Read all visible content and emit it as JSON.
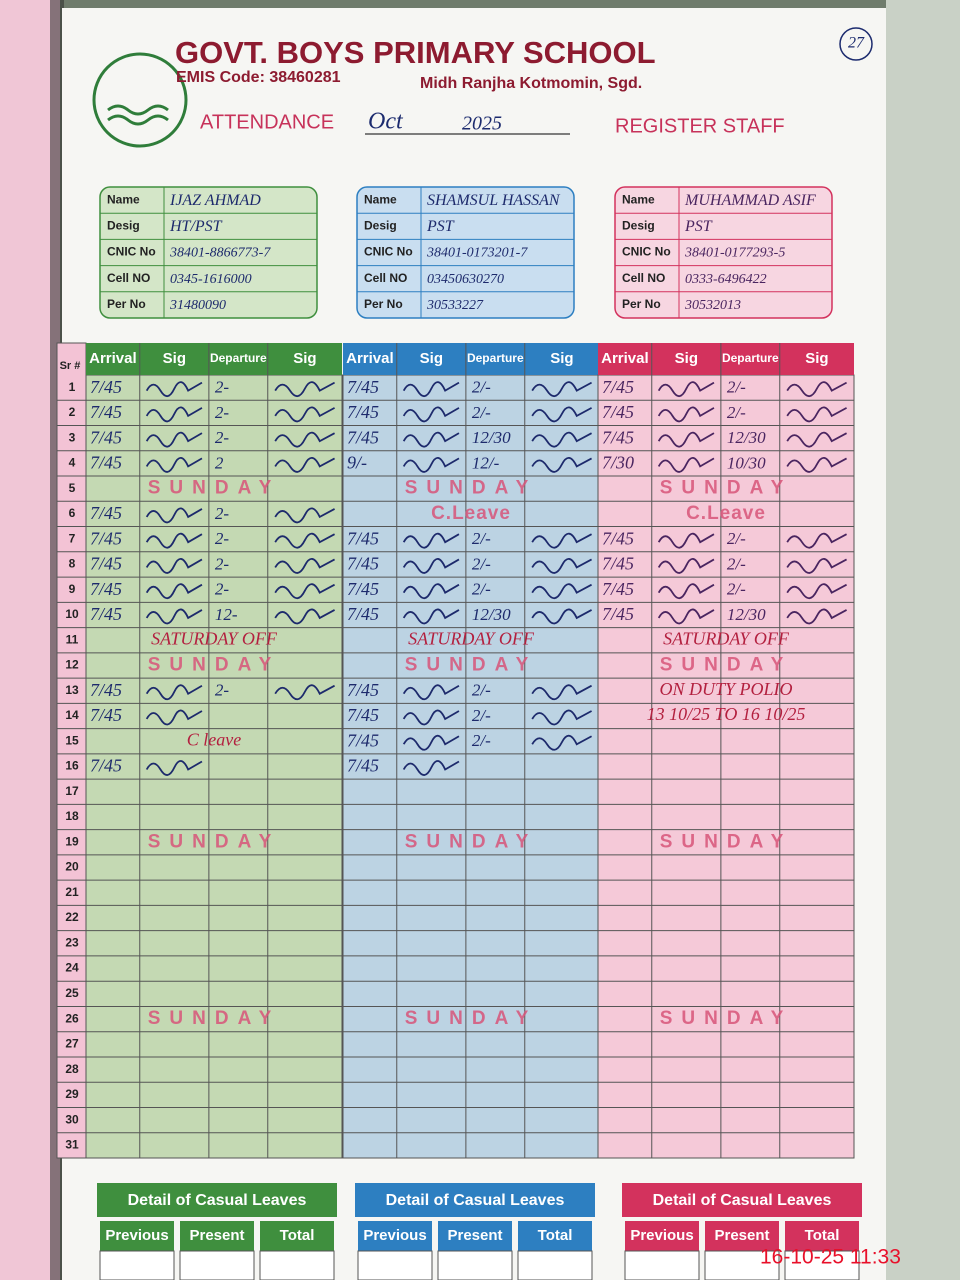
{
  "header": {
    "school": "GOVT. BOYS PRIMARY SCHOOL",
    "emis": "EMIS Code: 38460281",
    "location": "Midh Ranjha Kotmomin, Sgd.",
    "attendance": "ATTENDANCE",
    "month": "Oct",
    "year": "2025",
    "register": "REGISTER STAFF",
    "page_no": "27"
  },
  "sr_label": "Sr #",
  "rows": [
    1,
    2,
    3,
    4,
    5,
    6,
    7,
    8,
    9,
    10,
    11,
    12,
    13,
    14,
    15,
    16,
    17,
    18,
    19,
    20,
    21,
    22,
    23,
    24,
    25,
    26,
    27,
    28,
    29,
    30,
    31
  ],
  "staff": [
    {
      "fields": [
        {
          "label": "Name",
          "value": "IJAZ AHMAD"
        },
        {
          "label": "Desig",
          "value": "HT/PST"
        },
        {
          "label": "CNIC No",
          "value": "38401-8866773-7"
        },
        {
          "label": "Cell NO",
          "value": "0345-1616000"
        },
        {
          "label": "Per No",
          "value": "31480090"
        }
      ],
      "columns": [
        "Arrival",
        "Sig",
        "Departure",
        "Sig"
      ],
      "entries": [
        {
          "arrival": "7/45",
          "departure": "2-"
        },
        {
          "arrival": "7/45",
          "departure": "2-"
        },
        {
          "arrival": "7/45",
          "departure": "2-"
        },
        {
          "arrival": "7/45",
          "departure": "2"
        },
        {
          "stamp": "SUNDAY"
        },
        {
          "arrival": "7/45",
          "departure": "2-"
        },
        {
          "arrival": "7/45",
          "departure": "2-"
        },
        {
          "arrival": "7/45",
          "departure": "2-"
        },
        {
          "arrival": "7/45",
          "departure": "2-"
        },
        {
          "arrival": "7/45",
          "departure": "12-"
        },
        {
          "note": "SATURDAY OFF"
        },
        {
          "stamp": "SUNDAY"
        },
        {
          "arrival": "7/45",
          "departure": "2-"
        },
        {
          "arrival": "7/45"
        },
        {
          "note": "C leave"
        },
        {
          "arrival": "7/45"
        },
        null,
        null,
        {
          "stamp": "SUNDAY"
        },
        null,
        null,
        null,
        null,
        null,
        null,
        {
          "stamp": "SUNDAY"
        },
        null,
        null,
        null,
        null,
        null
      ],
      "casual_leaves": {
        "title": "Detail of Casual Leaves",
        "columns": [
          "Previous",
          "Present",
          "Total"
        ]
      }
    },
    {
      "fields": [
        {
          "label": "Name",
          "value": "SHAMSUL HASSAN"
        },
        {
          "label": "Desig",
          "value": "PST"
        },
        {
          "label": "CNIC No",
          "value": "38401-0173201-7"
        },
        {
          "label": "Cell NO",
          "value": "03450630270"
        },
        {
          "label": "Per No",
          "value": "30533227"
        }
      ],
      "columns": [
        "Arrival",
        "Sig",
        "Departure",
        "Sig"
      ],
      "entries": [
        {
          "arrival": "7/45",
          "departure": "2/-"
        },
        {
          "arrival": "7/45",
          "departure": "2/-"
        },
        {
          "arrival": "7/45",
          "departure": "12/30"
        },
        {
          "arrival": "9/-",
          "departure": "12/-"
        },
        {
          "stamp": "SUNDAY"
        },
        {
          "stamp": "C.Leave"
        },
        {
          "arrival": "7/45",
          "departure": "2/-"
        },
        {
          "arrival": "7/45",
          "departure": "2/-"
        },
        {
          "arrival": "7/45",
          "departure": "2/-"
        },
        {
          "arrival": "7/45",
          "departure": "12/30"
        },
        {
          "note": "SATURDAY OFF"
        },
        {
          "stamp": "SUNDAY"
        },
        {
          "arrival": "7/45",
          "departure": "2/-"
        },
        {
          "arrival": "7/45",
          "departure": "2/-"
        },
        {
          "arrival": "7/45",
          "departure": "2/-"
        },
        {
          "arrival": "7/45"
        },
        null,
        null,
        {
          "stamp": "SUNDAY"
        },
        null,
        null,
        null,
        null,
        null,
        null,
        {
          "stamp": "SUNDAY"
        },
        null,
        null,
        null,
        null,
        null
      ],
      "casual_leaves": {
        "title": "Detail of Casual Leaves",
        "columns": [
          "Previous",
          "Present",
          "Total"
        ]
      }
    },
    {
      "fields": [
        {
          "label": "Name",
          "value": "MUHAMMAD ASIF"
        },
        {
          "label": "Desig",
          "value": "PST"
        },
        {
          "label": "CNIC No",
          "value": "38401-0177293-5"
        },
        {
          "label": "Cell NO",
          "value": "0333-6496422"
        },
        {
          "label": "Per No",
          "value": "30532013"
        }
      ],
      "columns": [
        "Arrival",
        "Sig",
        "Departure",
        "Sig"
      ],
      "entries": [
        {
          "arrival": "7/45",
          "departure": "2/-"
        },
        {
          "arrival": "7/45",
          "departure": "2/-"
        },
        {
          "arrival": "7/45",
          "departure": "12/30"
        },
        {
          "arrival": "7/30",
          "departure": "10/30"
        },
        {
          "stamp": "SUNDAY"
        },
        {
          "stamp": "C.Leave"
        },
        {
          "arrival": "7/45",
          "departure": "2/-"
        },
        {
          "arrival": "7/45",
          "departure": "2/-"
        },
        {
          "arrival": "7/45",
          "departure": "2/-"
        },
        {
          "arrival": "7/45",
          "departure": "12/30"
        },
        {
          "note": "SATURDAY OFF"
        },
        {
          "stamp": "SUNDAY"
        },
        {
          "note": "ON DUTY POLIO"
        },
        {
          "note": "13 10/25 TO 16 10/25"
        },
        null,
        null,
        null,
        null,
        {
          "stamp": "SUNDAY"
        },
        null,
        null,
        null,
        null,
        null,
        null,
        {
          "stamp": "SUNDAY"
        },
        null,
        null,
        null,
        null,
        null
      ],
      "casual_leaves": {
        "title": "Detail of Casual Leaves",
        "columns": [
          "Previous",
          "Present",
          "Total"
        ]
      }
    }
  ],
  "timestamp": "16-10-25 11:33"
}
